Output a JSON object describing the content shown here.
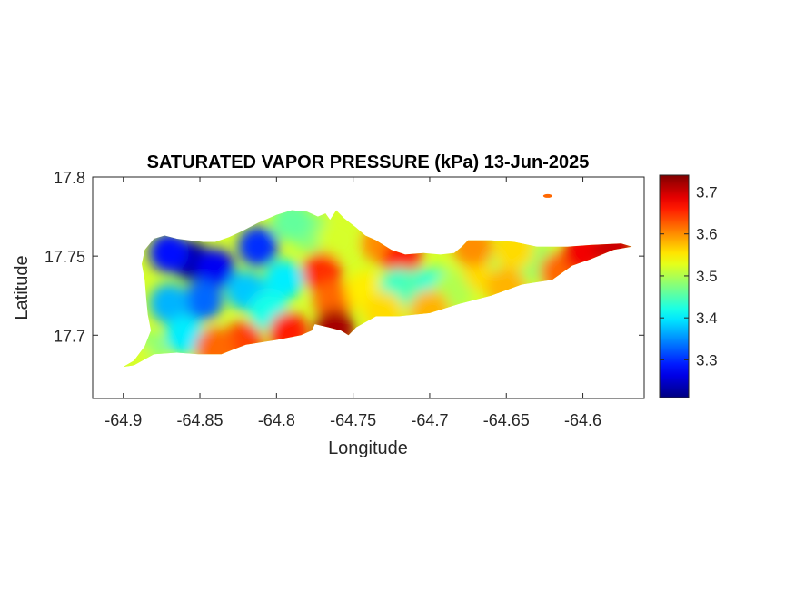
{
  "chart_data": {
    "type": "heatmap",
    "title": "SATURATED VAPOR PRESSURE (kPa) 13-Jun-2025",
    "xlabel": "Longitude",
    "ylabel": "Latitude",
    "xlim": [
      -64.92,
      -64.56
    ],
    "ylim": [
      17.66,
      17.8
    ],
    "x_ticks": [
      -64.9,
      -64.85,
      -64.8,
      -64.75,
      -64.7,
      -64.65,
      -64.6
    ],
    "x_tick_labels": [
      "-64.9",
      "-64.85",
      "-64.8",
      "-64.75",
      "-64.7",
      "-64.65",
      "-64.6"
    ],
    "y_ticks": [
      17.7,
      17.75,
      17.8
    ],
    "y_tick_labels": [
      "17.7",
      "17.75",
      "17.8"
    ],
    "colorbar": {
      "colormap": "jet",
      "range": [
        3.21,
        3.74
      ],
      "ticks": [
        3.3,
        3.4,
        3.5,
        3.6,
        3.7
      ],
      "tick_labels": [
        "3.3",
        "3.4",
        "3.5",
        "3.6",
        "3.7"
      ]
    },
    "grid": false,
    "island_outline": [
      [
        -64.9,
        17.68
      ],
      [
        -64.893,
        17.684
      ],
      [
        -64.886,
        17.693
      ],
      [
        -64.882,
        17.703
      ],
      [
        -64.884,
        17.713
      ],
      [
        -64.885,
        17.723
      ],
      [
        -64.886,
        17.735
      ],
      [
        -64.888,
        17.745
      ],
      [
        -64.886,
        17.754
      ],
      [
        -64.88,
        17.761
      ],
      [
        -64.873,
        17.763
      ],
      [
        -64.865,
        17.761
      ],
      [
        -64.857,
        17.76
      ],
      [
        -64.848,
        17.759
      ],
      [
        -64.84,
        17.759
      ],
      [
        -64.831,
        17.762
      ],
      [
        -64.822,
        17.766
      ],
      [
        -64.812,
        17.771
      ],
      [
        -64.8,
        17.776
      ],
      [
        -64.79,
        17.779
      ],
      [
        -64.78,
        17.778
      ],
      [
        -64.773,
        17.775
      ],
      [
        -64.768,
        17.777
      ],
      [
        -64.765,
        17.773
      ],
      [
        -64.761,
        17.779
      ],
      [
        -64.756,
        17.774
      ],
      [
        -64.748,
        17.768
      ],
      [
        -64.742,
        17.763
      ],
      [
        -64.735,
        17.76
      ],
      [
        -64.725,
        17.754
      ],
      [
        -64.716,
        17.751
      ],
      [
        -64.704,
        17.752
      ],
      [
        -64.693,
        17.751
      ],
      [
        -64.684,
        17.752
      ],
      [
        -64.679,
        17.756
      ],
      [
        -64.675,
        17.76
      ],
      [
        -64.66,
        17.76
      ],
      [
        -64.645,
        17.759
      ],
      [
        -64.63,
        17.756
      ],
      [
        -64.61,
        17.756
      ],
      [
        -64.595,
        17.757
      ],
      [
        -64.575,
        17.758
      ],
      [
        -64.568,
        17.756
      ],
      [
        -64.58,
        17.754
      ],
      [
        -64.595,
        17.748
      ],
      [
        -64.607,
        17.744
      ],
      [
        -64.62,
        17.735
      ],
      [
        -64.64,
        17.732
      ],
      [
        -64.66,
        17.725
      ],
      [
        -64.68,
        17.72
      ],
      [
        -64.7,
        17.714
      ],
      [
        -64.72,
        17.712
      ],
      [
        -64.735,
        17.712
      ],
      [
        -64.748,
        17.705
      ],
      [
        -64.753,
        17.7
      ],
      [
        -64.758,
        17.703
      ],
      [
        -64.766,
        17.705
      ],
      [
        -64.775,
        17.707
      ],
      [
        -64.777,
        17.703
      ],
      [
        -64.784,
        17.7
      ],
      [
        -64.8,
        17.697
      ],
      [
        -64.82,
        17.694
      ],
      [
        -64.836,
        17.688
      ],
      [
        -64.851,
        17.688
      ],
      [
        -64.865,
        17.689
      ],
      [
        -64.88,
        17.688
      ],
      [
        -64.893,
        17.681
      ],
      [
        -64.9,
        17.68
      ]
    ],
    "islet": [
      -64.623,
      17.788
    ],
    "values": [
      {
        "lon": -64.856,
        "lat": 17.747,
        "value": 3.22
      },
      {
        "lon": -64.84,
        "lat": 17.742,
        "value": 3.27
      },
      {
        "lon": -64.87,
        "lat": 17.752,
        "value": 3.28
      },
      {
        "lon": -64.812,
        "lat": 17.756,
        "value": 3.3
      },
      {
        "lon": -64.848,
        "lat": 17.722,
        "value": 3.33
      },
      {
        "lon": -64.87,
        "lat": 17.72,
        "value": 3.37
      },
      {
        "lon": -64.86,
        "lat": 17.7,
        "value": 3.4
      },
      {
        "lon": -64.82,
        "lat": 17.728,
        "value": 3.38
      },
      {
        "lon": -64.795,
        "lat": 17.735,
        "value": 3.4
      },
      {
        "lon": -64.805,
        "lat": 17.715,
        "value": 3.42
      },
      {
        "lon": -64.885,
        "lat": 17.69,
        "value": 3.48
      },
      {
        "lon": -64.893,
        "lat": 17.684,
        "value": 3.52
      },
      {
        "lon": -64.778,
        "lat": 17.765,
        "value": 3.48
      },
      {
        "lon": -64.79,
        "lat": 17.772,
        "value": 3.46
      },
      {
        "lon": -64.76,
        "lat": 17.76,
        "value": 3.52
      },
      {
        "lon": -64.77,
        "lat": 17.74,
        "value": 3.65
      },
      {
        "lon": -64.763,
        "lat": 17.722,
        "value": 3.62
      },
      {
        "lon": -64.742,
        "lat": 17.728,
        "value": 3.55
      },
      {
        "lon": -64.762,
        "lat": 17.704,
        "value": 3.72
      },
      {
        "lon": -64.792,
        "lat": 17.702,
        "value": 3.66
      },
      {
        "lon": -64.822,
        "lat": 17.696,
        "value": 3.64
      },
      {
        "lon": -64.84,
        "lat": 17.692,
        "value": 3.62
      },
      {
        "lon": -64.732,
        "lat": 17.758,
        "value": 3.6
      },
      {
        "lon": -64.718,
        "lat": 17.748,
        "value": 3.66
      },
      {
        "lon": -64.72,
        "lat": 17.73,
        "value": 3.44
      },
      {
        "lon": -64.705,
        "lat": 17.73,
        "value": 3.45
      },
      {
        "lon": -64.695,
        "lat": 17.73,
        "value": 3.43
      },
      {
        "lon": -64.685,
        "lat": 17.728,
        "value": 3.5
      },
      {
        "lon": -64.73,
        "lat": 17.715,
        "value": 3.56
      },
      {
        "lon": -64.7,
        "lat": 17.716,
        "value": 3.58
      },
      {
        "lon": -64.665,
        "lat": 17.74,
        "value": 3.56
      },
      {
        "lon": -64.672,
        "lat": 17.756,
        "value": 3.6
      },
      {
        "lon": -64.648,
        "lat": 17.746,
        "value": 3.5
      },
      {
        "lon": -64.63,
        "lat": 17.746,
        "value": 3.49
      },
      {
        "lon": -64.645,
        "lat": 17.754,
        "value": 3.56
      },
      {
        "lon": -64.65,
        "lat": 17.73,
        "value": 3.58
      },
      {
        "lon": -64.615,
        "lat": 17.74,
        "value": 3.62
      },
      {
        "lon": -64.6,
        "lat": 17.752,
        "value": 3.68
      },
      {
        "lon": -64.58,
        "lat": 17.756,
        "value": 3.7
      },
      {
        "lon": -64.623,
        "lat": 17.788,
        "value": 3.62
      }
    ]
  }
}
